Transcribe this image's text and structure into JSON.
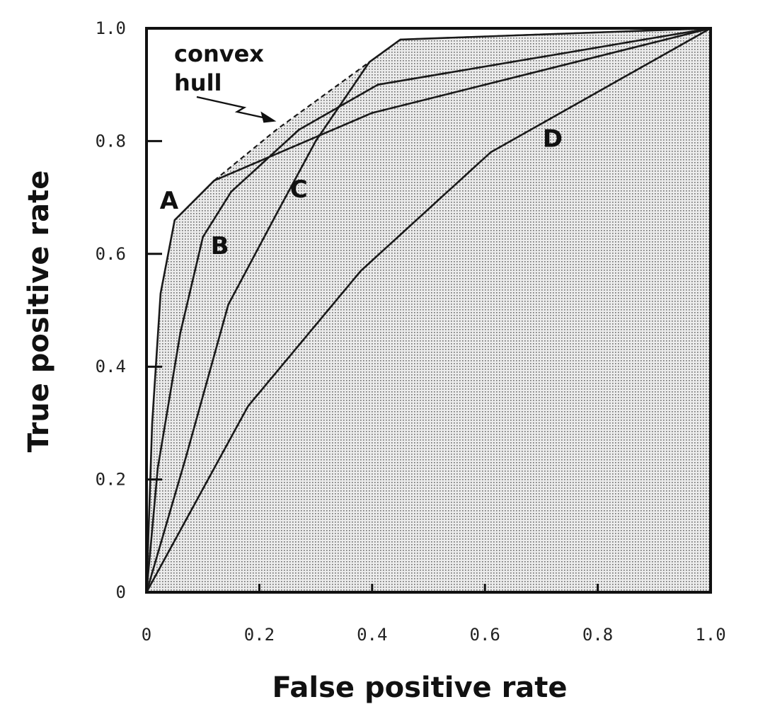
{
  "chart_data": {
    "type": "line",
    "title": "",
    "xlabel": "False positive rate",
    "ylabel": "True positive rate",
    "xlim": [
      0,
      1.0
    ],
    "ylim": [
      0,
      1.0
    ],
    "grid": false,
    "x_ticks": [
      "0",
      "0.2",
      "0.4",
      "0.6",
      "0.8",
      "1.0"
    ],
    "y_ticks": [
      "0",
      "0.2",
      "0.4",
      "0.6",
      "0.8",
      "1.0"
    ],
    "series": [
      {
        "name": "A",
        "label_at": [
          0.04,
          0.68
        ],
        "points": [
          [
            0,
            0
          ],
          [
            0.01,
            0.3
          ],
          [
            0.025,
            0.53
          ],
          [
            0.05,
            0.66
          ],
          [
            0.12,
            0.73
          ],
          [
            0.4,
            0.85
          ],
          [
            1.0,
            1.0
          ]
        ]
      },
      {
        "name": "B",
        "label_at": [
          0.13,
          0.6
        ],
        "points": [
          [
            0,
            0
          ],
          [
            0.02,
            0.22
          ],
          [
            0.06,
            0.46
          ],
          [
            0.1,
            0.63
          ],
          [
            0.15,
            0.71
          ],
          [
            0.27,
            0.82
          ],
          [
            0.41,
            0.9
          ],
          [
            1.0,
            1.0
          ]
        ]
      },
      {
        "name": "C",
        "label_at": [
          0.27,
          0.7
        ],
        "points": [
          [
            0,
            0
          ],
          [
            0.07,
            0.24
          ],
          [
            0.145,
            0.51
          ],
          [
            0.23,
            0.67
          ],
          [
            0.3,
            0.8
          ],
          [
            0.395,
            0.94
          ],
          [
            0.45,
            0.98
          ],
          [
            1.0,
            1.0
          ]
        ]
      },
      {
        "name": "D",
        "label_at": [
          0.72,
          0.79
        ],
        "points": [
          [
            0,
            0
          ],
          [
            0.18,
            0.33
          ],
          [
            0.38,
            0.57
          ],
          [
            0.61,
            0.78
          ],
          [
            1.0,
            1.0
          ]
        ]
      }
    ],
    "convex_hull": {
      "points": [
        [
          0.12,
          0.73
        ],
        [
          0.23,
          0.82
        ],
        [
          0.395,
          0.94
        ],
        [
          0.45,
          0.98
        ],
        [
          1.0,
          1.0
        ]
      ]
    },
    "annotations": [
      {
        "text_lines": [
          "convex",
          "hull"
        ],
        "points_to": [
          0.22,
          0.83
        ]
      }
    ],
    "fill": "dotted shading under the convex hull"
  }
}
